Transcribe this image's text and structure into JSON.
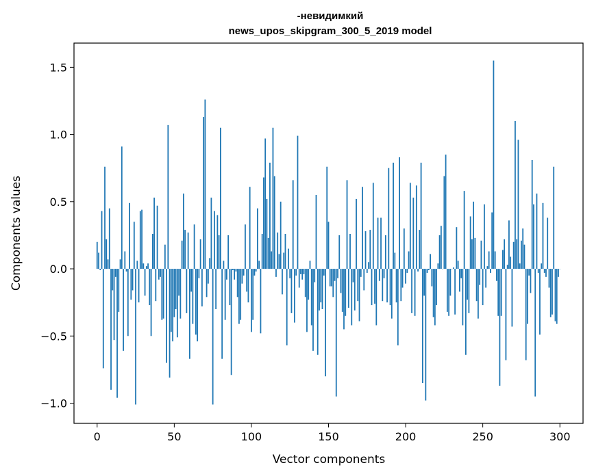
{
  "chart_data": {
    "type": "bar",
    "title": [
      "-невидимкий",
      "news_upos_skipgram_300_5_2019 model"
    ],
    "xlabel": "Vector components",
    "ylabel": "Components values",
    "xlim": [
      -15,
      315
    ],
    "ylim": [
      -1.15,
      1.68
    ],
    "x_ticks": [
      0,
      50,
      100,
      150,
      200,
      250,
      300
    ],
    "y_ticks": [
      -1.0,
      -0.5,
      0.0,
      0.5,
      1.0,
      1.5
    ],
    "y_tick_labels": [
      "−1.0",
      "−0.5",
      "0.0",
      "0.5",
      "1.0",
      "1.5"
    ],
    "grid": false,
    "bar_color": "#1f77b4",
    "values": [
      0.2,
      0.12,
      -0.01,
      0.43,
      -0.74,
      0.76,
      0.22,
      0.07,
      0.45,
      -0.9,
      -0.16,
      -0.53,
      -0.06,
      -0.96,
      -0.32,
      0.07,
      0.91,
      -0.61,
      0.13,
      -0.02,
      -0.5,
      0.49,
      -0.23,
      -0.16,
      0.35,
      -1.01,
      0.06,
      -0.25,
      0.43,
      0.44,
      0.04,
      -0.2,
      0.02,
      0.04,
      -0.27,
      -0.5,
      0.26,
      0.53,
      -0.24,
      0.47,
      -0.08,
      -0.06,
      -0.38,
      -0.37,
      0.18,
      -0.7,
      1.07,
      -0.81,
      -0.47,
      -0.54,
      -0.36,
      -0.3,
      -0.51,
      -0.2,
      -0.37,
      0.21,
      0.56,
      0.29,
      -0.33,
      0.27,
      -0.67,
      -0.17,
      -0.41,
      0.33,
      -0.49,
      -0.54,
      -0.07,
      0.22,
      -0.28,
      1.13,
      1.26,
      -0.21,
      -0.11,
      0.08,
      0.53,
      -1.01,
      0.43,
      -0.3,
      0.4,
      0.25,
      1.05,
      -0.67,
      0.06,
      -0.38,
      -0.08,
      0.25,
      -0.27,
      -0.79,
      -0.01,
      -0.08,
      -0.02,
      -0.21,
      -0.41,
      -0.38,
      -0.11,
      -0.05,
      0.33,
      -0.17,
      -0.25,
      0.61,
      -0.47,
      -0.38,
      -0.05,
      -0.02,
      0.45,
      0.06,
      -0.48,
      0.26,
      0.68,
      0.97,
      0.52,
      0.23,
      0.79,
      0.13,
      1.05,
      0.69,
      -0.06,
      0.27,
      0.11,
      0.5,
      -0.19,
      0.12,
      0.26,
      -0.57,
      0.15,
      -0.07,
      -0.33,
      0.66,
      -0.4,
      -0.05,
      0.99,
      -0.14,
      -0.04,
      -0.08,
      -0.04,
      -0.21,
      -0.47,
      -0.23,
      0.06,
      -0.42,
      -0.61,
      -0.1,
      0.55,
      -0.64,
      -0.31,
      -0.25,
      -0.3,
      -0.05,
      -0.8,
      0.76,
      0.35,
      -0.13,
      -0.13,
      -0.21,
      -0.09,
      -0.95,
      -0.07,
      0.25,
      -0.18,
      -0.32,
      -0.45,
      -0.35,
      0.66,
      -0.29,
      0.26,
      -0.42,
      -0.1,
      -0.31,
      0.52,
      -0.24,
      -0.39,
      -0.06,
      0.61,
      -0.16,
      0.28,
      -0.03,
      0.05,
      0.29,
      -0.27,
      0.64,
      -0.26,
      -0.42,
      0.38,
      -0.09,
      0.38,
      -0.24,
      -0.07,
      0.25,
      -0.25,
      0.75,
      -0.27,
      -0.37,
      0.79,
      0.12,
      -0.25,
      -0.57,
      0.83,
      -0.24,
      -0.14,
      0.3,
      -0.11,
      -0.03,
      0.13,
      0.64,
      -0.33,
      0.53,
      -0.35,
      0.62,
      -0.02,
      0.29,
      0.79,
      -0.85,
      -0.2,
      -0.98,
      -0.03,
      -0.01,
      0.11,
      -0.13,
      -0.36,
      -0.42,
      -0.27,
      0.04,
      0.25,
      0.32,
      0.0,
      0.69,
      0.85,
      -0.32,
      -0.35,
      -0.2,
      0.0,
      0.01,
      -0.34,
      0.31,
      0.06,
      -0.17,
      -0.07,
      -0.42,
      0.58,
      -0.64,
      -0.23,
      -0.33,
      0.39,
      0.22,
      0.5,
      0.23,
      -0.24,
      -0.37,
      -0.12,
      0.21,
      -0.27,
      0.48,
      -0.14,
      0.02,
      0.13,
      -0.03,
      0.42,
      1.55,
      0.13,
      -0.09,
      -0.35,
      -0.87,
      -0.35,
      0.14,
      0.22,
      -0.68,
      0.03,
      0.36,
      0.09,
      -0.43,
      0.2,
      1.1,
      0.22,
      0.96,
      0.04,
      0.21,
      0.3,
      0.18,
      -0.68,
      -0.41,
      -0.05,
      -0.18,
      0.81,
      0.48,
      -0.95,
      0.56,
      -0.03,
      -0.49,
      0.04,
      0.49,
      -0.03,
      -0.06,
      0.38,
      -0.14,
      -0.36,
      -0.34,
      0.76,
      -0.39,
      -0.41,
      -0.06,
      0.0
    ]
  }
}
